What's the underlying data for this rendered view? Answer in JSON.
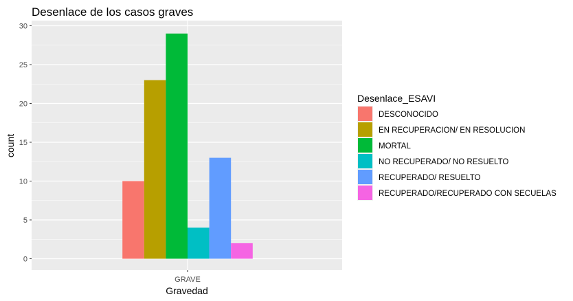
{
  "chart_data": {
    "type": "bar",
    "title": "Desenlace de los casos graves",
    "xlabel": "Gravedad",
    "ylabel": "count",
    "categories": [
      "GRAVE"
    ],
    "ylim": [
      0,
      30
    ],
    "yticks": [
      0,
      5,
      10,
      15,
      20,
      25,
      30
    ],
    "grid": true,
    "legend_title": "Desenlace_ESAVI",
    "legend_position": "right",
    "series": [
      {
        "name": "DESCONOCIDO",
        "color": "#F8766D",
        "values": [
          10
        ]
      },
      {
        "name": "EN RECUPERACION/ EN RESOLUCION",
        "color": "#B79F00",
        "values": [
          23
        ]
      },
      {
        "name": "MORTAL",
        "color": "#00BA38",
        "values": [
          29
        ]
      },
      {
        "name": "NO RECUPERADO/ NO RESUELTO",
        "color": "#00BFC4",
        "values": [
          4
        ]
      },
      {
        "name": "RECUPERADO/ RESUELTO",
        "color": "#619CFF",
        "values": [
          13
        ]
      },
      {
        "name": "RECUPERADO/RECUPERADO CON SECUELAS",
        "color": "#F564E3",
        "values": [
          2
        ]
      }
    ]
  }
}
